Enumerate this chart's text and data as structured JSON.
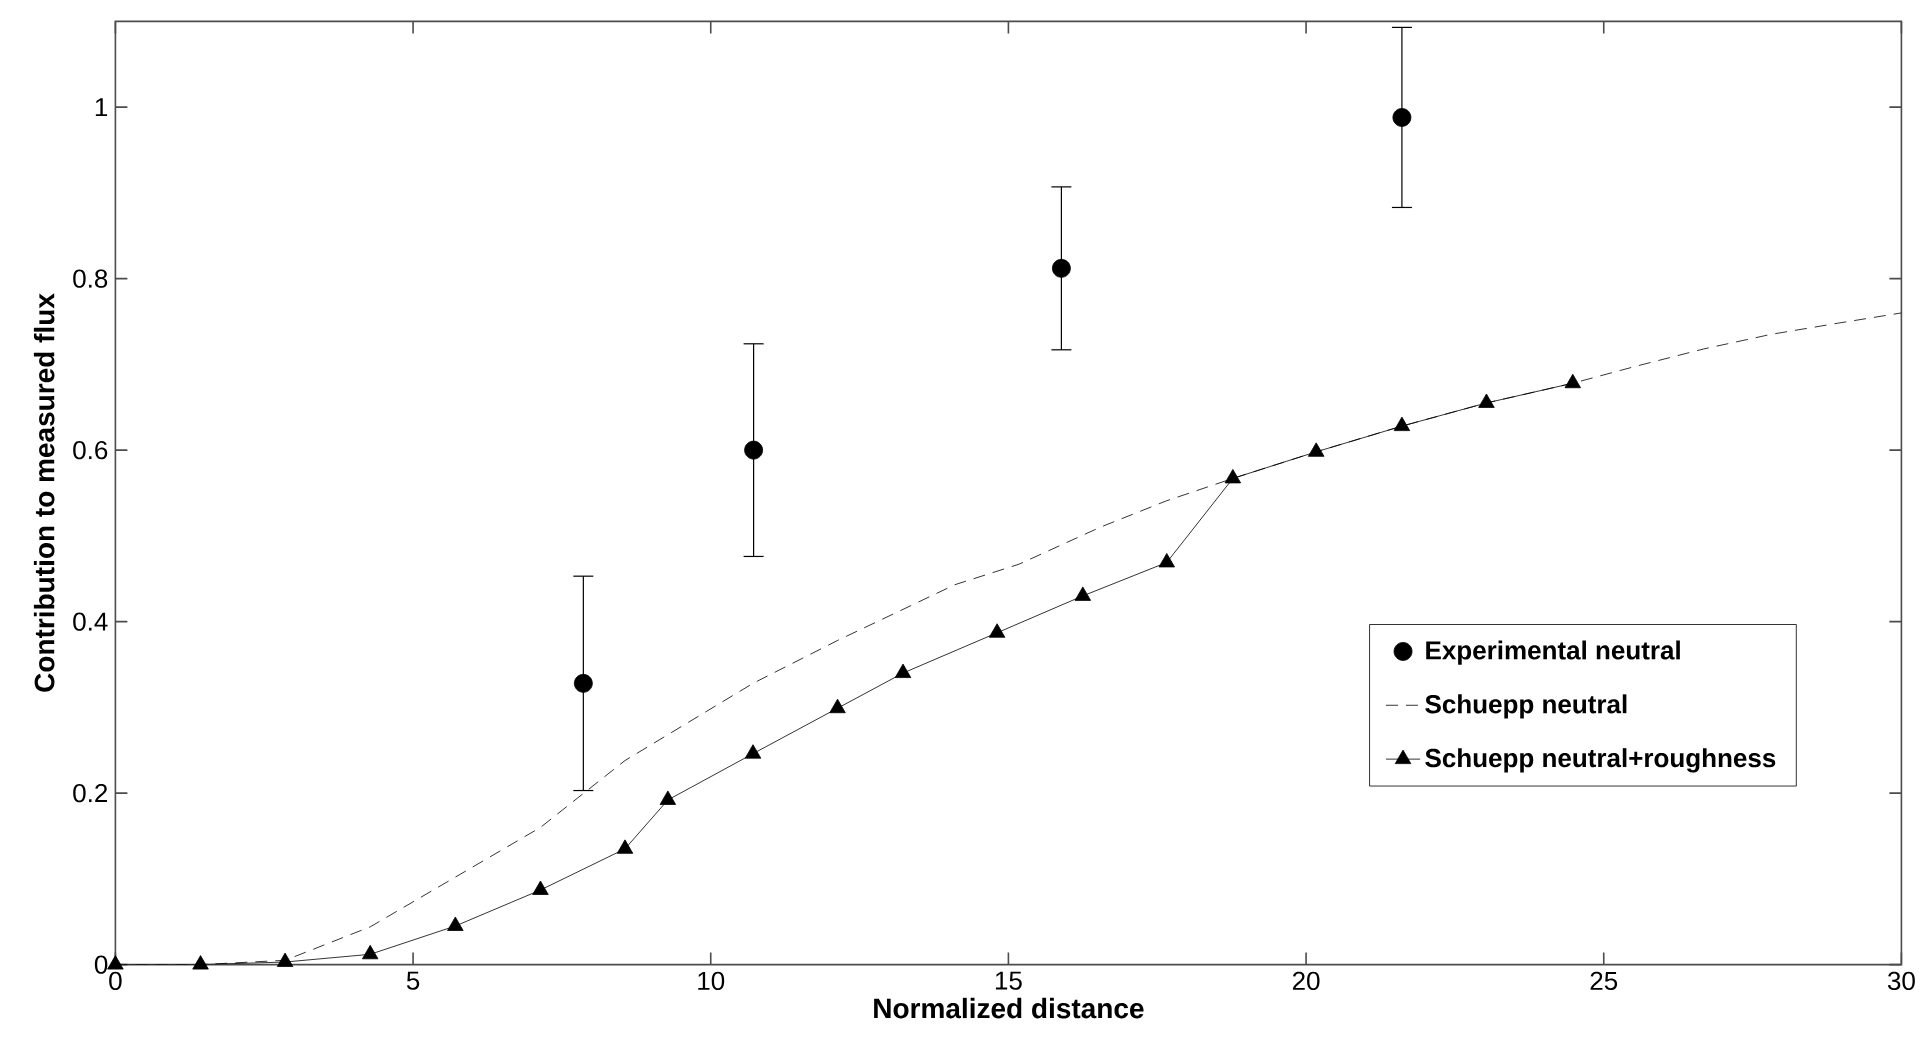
{
  "chart_data": {
    "type": "line",
    "xlabel": "Normalized distance",
    "ylabel": "Contribution to measured flux",
    "xlim": [
      0,
      30
    ],
    "ylim": [
      0,
      1.1
    ],
    "xticks": [
      0,
      5,
      10,
      15,
      20,
      25,
      30
    ],
    "yticks": [
      0,
      0.2,
      0.4,
      0.6,
      0.8,
      1
    ],
    "grid": false,
    "legend": "bottom right",
    "series": [
      {
        "name": "Experimental neutral",
        "type": "scatter",
        "marker": "circle",
        "color": "#000000",
        "x": [
          7.86,
          10.72,
          15.89,
          21.61
        ],
        "values": [
          0.328,
          0.6,
          0.812,
          0.988
        ],
        "errors": [
          0.125,
          0.124,
          0.095,
          0.105
        ]
      },
      {
        "name": "Schuepp neutral",
        "line_style": "dashed",
        "marker": "none",
        "color": "#000000",
        "x": [
          0,
          1.43,
          2.85,
          4.28,
          5.71,
          7.14,
          8.56,
          10.71,
          12.13,
          14.1,
          15.18,
          16.54,
          17.66,
          18.77,
          20.17,
          21.61,
          23.03,
          24.48,
          25.55,
          26.68,
          27.81,
          28.93,
          30
        ],
        "values": [
          0,
          0,
          0.005,
          0.044,
          0.102,
          0.16,
          0.238,
          0.328,
          0.378,
          0.443,
          0.467,
          0.51,
          0.541,
          0.567,
          0.598,
          0.628,
          0.655,
          0.678,
          0.698,
          0.718,
          0.735,
          0.748,
          0.76
        ]
      },
      {
        "name": "Schuepp neutral+roughness",
        "line_style": "solid",
        "marker": "triangle",
        "color": "#000000",
        "x": [
          0,
          1.43,
          2.85,
          4.28,
          5.71,
          7.14,
          8.56,
          9.28,
          10.71,
          12.13,
          13.23,
          14.81,
          16.25,
          17.66,
          18.77,
          20.17,
          21.61,
          23.03,
          24.48
        ],
        "values": [
          0,
          0,
          0.003,
          0.012,
          0.045,
          0.087,
          0.135,
          0.192,
          0.246,
          0.299,
          0.34,
          0.387,
          0.43,
          0.469,
          0.567,
          0.598,
          0.628,
          0.655,
          0.678
        ]
      }
    ]
  }
}
